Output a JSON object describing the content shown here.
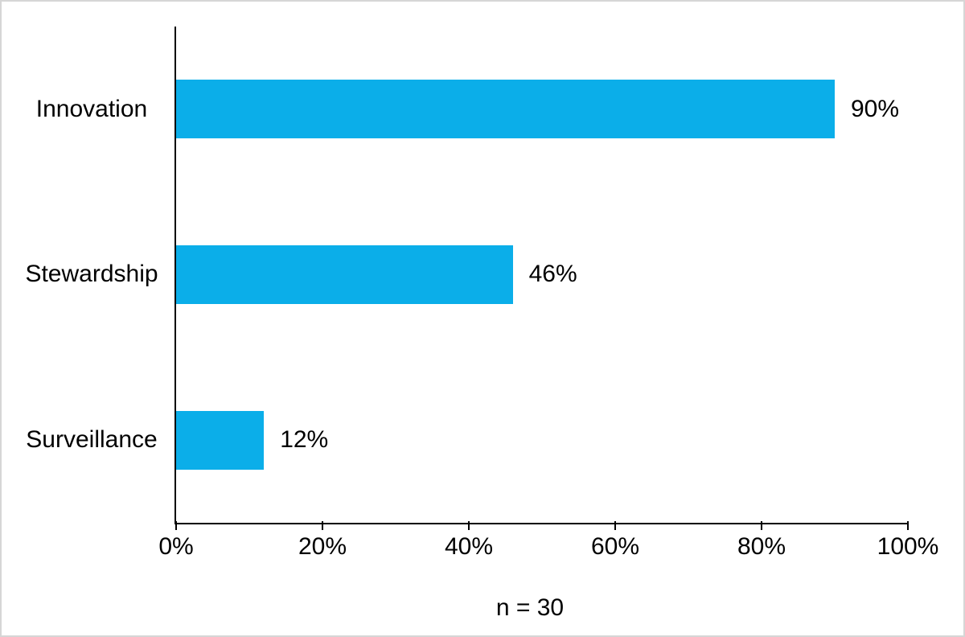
{
  "chart_data": {
    "type": "bar",
    "orientation": "horizontal",
    "categories": [
      "Innovation",
      "Stewardship",
      "Surveillance"
    ],
    "values": [
      90,
      46,
      12
    ],
    "value_labels": [
      "90%",
      "46%",
      "12%"
    ],
    "x_ticks": [
      0,
      20,
      40,
      60,
      80,
      100
    ],
    "x_tick_labels": [
      "0%",
      "20%",
      "40%",
      "60%",
      "80%",
      "100%"
    ],
    "xlim": [
      0,
      100
    ],
    "caption": "n = 30",
    "grid": false,
    "legend": false,
    "bar_color": "#0baee9",
    "axis_color": "#000000",
    "background_color": "#ffffff",
    "border_color": "#d6d6d6"
  }
}
